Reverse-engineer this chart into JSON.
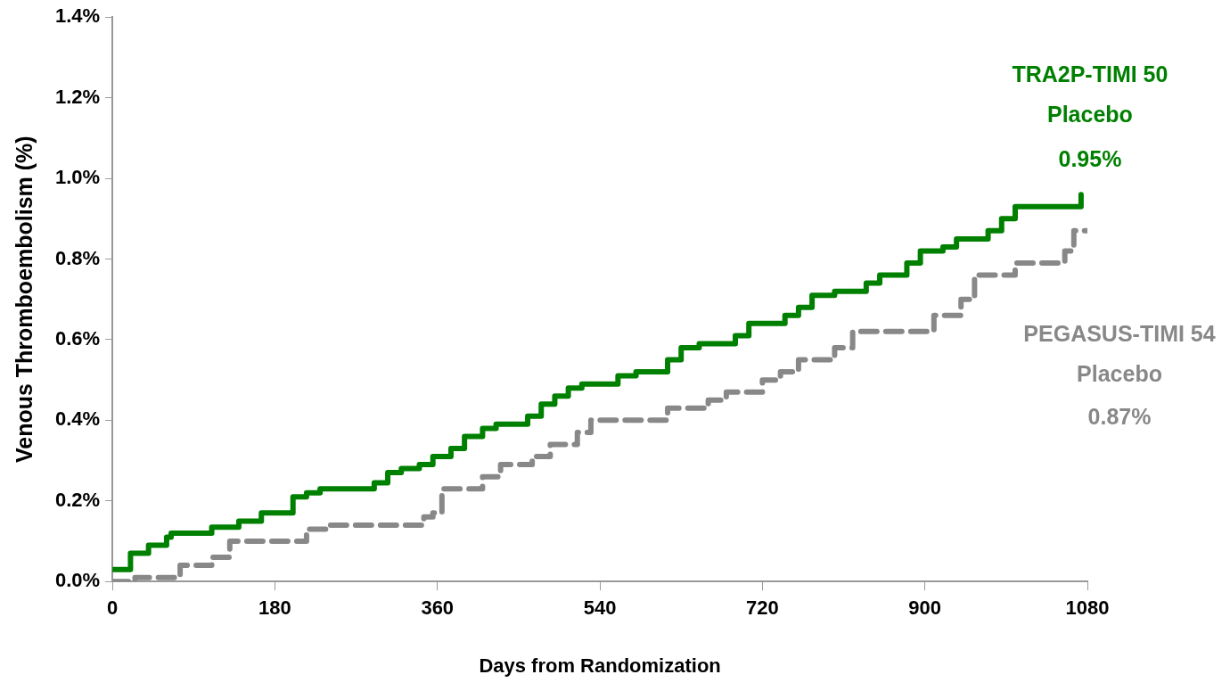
{
  "chart_data": {
    "type": "step",
    "xlabel": "Days from Randomization",
    "ylabel": "Venous Thromboembolism (%)",
    "xlim": [
      0,
      1080
    ],
    "xticks": [
      0,
      180,
      360,
      540,
      720,
      900,
      1080
    ],
    "ylim": [
      0,
      1.4
    ],
    "yticks": [
      {
        "value": 0,
        "label": "0.0%"
      },
      {
        "value": 0.2,
        "label": "0.2%"
      },
      {
        "value": 0.4,
        "label": "0.4%"
      },
      {
        "value": 0.6,
        "label": "0.6%"
      },
      {
        "value": 0.8,
        "label": "0.8%"
      },
      {
        "value": 1.0,
        "label": "1.0%"
      },
      {
        "value": 1.2,
        "label": "1.2%"
      },
      {
        "value": 1.4,
        "label": "1.4%"
      }
    ],
    "grid": false,
    "legend": false,
    "marker": "none",
    "series": [
      {
        "name": "TRA2P-TIMI 50 Placebo",
        "color": "#008000",
        "line_style": "solid",
        "x": [
          0,
          20,
          40,
          60,
          65,
          110,
          140,
          150,
          165,
          200,
          215,
          230,
          290,
          305,
          320,
          340,
          355,
          375,
          390,
          410,
          425,
          460,
          475,
          490,
          505,
          520,
          560,
          580,
          615,
          630,
          650,
          690,
          705,
          745,
          760,
          775,
          800,
          835,
          850,
          880,
          895,
          920,
          935,
          970,
          985,
          1000,
          1070,
          1073
        ],
        "values": [
          0.03,
          0.07,
          0.09,
          0.11,
          0.12,
          0.135,
          0.15,
          0.15,
          0.17,
          0.21,
          0.22,
          0.23,
          0.245,
          0.27,
          0.28,
          0.29,
          0.31,
          0.33,
          0.36,
          0.38,
          0.39,
          0.41,
          0.44,
          0.46,
          0.48,
          0.49,
          0.51,
          0.52,
          0.55,
          0.58,
          0.59,
          0.61,
          0.64,
          0.66,
          0.68,
          0.71,
          0.72,
          0.74,
          0.76,
          0.79,
          0.82,
          0.83,
          0.85,
          0.87,
          0.9,
          0.93,
          0.93,
          0.96
        ]
      },
      {
        "name": "PEGASUS-TIMI 54 Placebo",
        "color": "#888888",
        "line_style": "dashed",
        "x": [
          0,
          25,
          75,
          110,
          130,
          215,
          240,
          345,
          355,
          365,
          410,
          430,
          465,
          485,
          515,
          530,
          615,
          660,
          680,
          720,
          740,
          760,
          800,
          820,
          910,
          940,
          955,
          1000,
          1055,
          1065,
          1080
        ],
        "values": [
          0,
          0.01,
          0.04,
          0.06,
          0.1,
          0.13,
          0.14,
          0.16,
          0.17,
          0.23,
          0.26,
          0.29,
          0.31,
          0.34,
          0.37,
          0.4,
          0.43,
          0.45,
          0.47,
          0.5,
          0.52,
          0.55,
          0.58,
          0.62,
          0.66,
          0.7,
          0.76,
          0.79,
          0.82,
          0.87,
          0.87
        ]
      }
    ],
    "annotations": [
      "0.95%",
      "0.87%"
    ]
  }
}
